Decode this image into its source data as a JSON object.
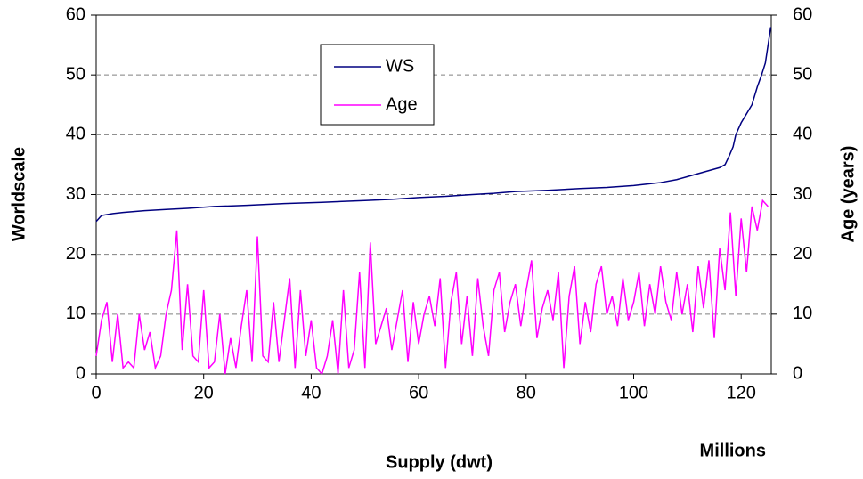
{
  "chart_data": {
    "type": "line",
    "xlabel": "Supply (dwt)",
    "x_unit_label": "Millions",
    "ylabel": "Worldscale",
    "y2label": "Age (years)",
    "xlim": [
      0,
      125.6
    ],
    "xticks": [
      0,
      20,
      40,
      60,
      80,
      100,
      120
    ],
    "ylim": [
      0,
      60
    ],
    "yticks": [
      0,
      10,
      20,
      30,
      40,
      50,
      60
    ],
    "y2lim": [
      0,
      60
    ],
    "y2ticks": [
      0,
      10,
      20,
      30,
      40,
      50,
      60
    ],
    "grid": true,
    "legend": "upper-center",
    "series": [
      {
        "name": "WS",
        "color": "#000080",
        "x": [
          0,
          0.5,
          1,
          3,
          5,
          9,
          13,
          17,
          22,
          28,
          35,
          42,
          50,
          55,
          60,
          65,
          70,
          74,
          78,
          84,
          90,
          95,
          100,
          103,
          105,
          108,
          110,
          112,
          114,
          116,
          117,
          117.8,
          118.5,
          119,
          120,
          121,
          122,
          123,
          123.8,
          124.5,
          125,
          125.5
        ],
        "values": [
          25.5,
          26,
          26.5,
          26.8,
          27,
          27.3,
          27.5,
          27.7,
          28,
          28.2,
          28.5,
          28.7,
          29,
          29.2,
          29.5,
          29.7,
          30,
          30.2,
          30.5,
          30.7,
          31,
          31.2,
          31.5,
          31.8,
          32,
          32.5,
          33,
          33.5,
          34,
          34.5,
          35,
          36.5,
          38,
          40,
          42,
          43.5,
          45,
          48,
          50,
          52,
          55,
          58
        ]
      },
      {
        "name": "Age",
        "color": "#ff00ff",
        "axis": "y2",
        "x": [
          0,
          1,
          2,
          3,
          4,
          5,
          6,
          7,
          8,
          9,
          10,
          11,
          12,
          13,
          14,
          15,
          16,
          17,
          18,
          19,
          20,
          21,
          22,
          23,
          24,
          25,
          26,
          27,
          28,
          29,
          30,
          31,
          32,
          33,
          34,
          35,
          36,
          37,
          38,
          39,
          40,
          41,
          42,
          43,
          44,
          45,
          46,
          47,
          48,
          49,
          50,
          51,
          52,
          53,
          54,
          55,
          56,
          57,
          58,
          59,
          60,
          61,
          62,
          63,
          64,
          65,
          66,
          67,
          68,
          69,
          70,
          71,
          72,
          73,
          74,
          75,
          76,
          77,
          78,
          79,
          80,
          81,
          82,
          83,
          84,
          85,
          86,
          87,
          88,
          89,
          90,
          91,
          92,
          93,
          94,
          95,
          96,
          97,
          98,
          99,
          100,
          101,
          102,
          103,
          104,
          105,
          106,
          107,
          108,
          109,
          110,
          111,
          112,
          113,
          114,
          115,
          116,
          117,
          118,
          119,
          120,
          121,
          122,
          123,
          124,
          125
        ],
        "values": [
          3,
          9,
          12,
          2,
          10,
          1,
          2,
          1,
          10,
          4,
          7,
          1,
          3,
          10,
          14,
          24,
          4,
          15,
          3,
          2,
          14,
          1,
          2,
          10,
          0,
          6,
          1,
          8,
          14,
          2,
          23,
          3,
          2,
          12,
          2,
          9,
          16,
          1,
          14,
          3,
          9,
          1,
          0,
          3,
          9,
          0,
          14,
          1,
          4,
          17,
          1,
          22,
          5,
          8,
          11,
          4,
          9,
          14,
          2,
          12,
          5,
          10,
          13,
          8,
          16,
          1,
          12,
          17,
          5,
          13,
          3,
          16,
          8,
          3,
          14,
          17,
          7,
          12,
          15,
          8,
          14,
          19,
          6,
          11,
          14,
          9,
          17,
          1,
          13,
          18,
          5,
          12,
          7,
          15,
          18,
          10,
          13,
          8,
          16,
          9,
          12,
          17,
          8,
          15,
          10,
          18,
          12,
          9,
          17,
          10,
          15,
          7,
          18,
          11,
          19,
          6,
          21,
          14,
          27,
          13,
          26,
          17,
          28,
          24,
          29,
          28
        ]
      }
    ]
  }
}
